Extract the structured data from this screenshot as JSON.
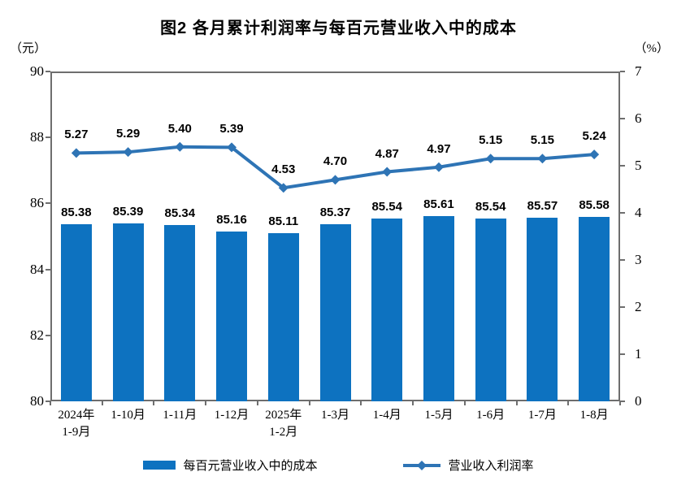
{
  "title": "图2  各月累计利润率与每百元营业收入中的成本",
  "left_axis_unit": "（元）",
  "right_axis_unit": "（%）",
  "chart_data": {
    "type": "combo-bar-line",
    "title": "图2  各月累计利润率与每百元营业收入中的成本",
    "categories": [
      "2024年\n1-9月",
      "1-10月",
      "1-11月",
      "1-12月",
      "2025年\n1-2月",
      "1-3月",
      "1-4月",
      "1-5月",
      "1-6月",
      "1-7月",
      "1-8月"
    ],
    "series": [
      {
        "name": "每百元营业收入中的成本",
        "type": "bar",
        "axis": "left",
        "color": "#0d72c0",
        "values": [
          85.38,
          85.39,
          85.34,
          85.16,
          85.11,
          85.37,
          85.54,
          85.61,
          85.54,
          85.57,
          85.58
        ],
        "value_labels": [
          "85.38",
          "85.39",
          "85.34",
          "85.16",
          "85.11",
          "85.37",
          "85.54",
          "85.61",
          "85.54",
          "85.57",
          "85.58"
        ]
      },
      {
        "name": "营业收入利润率",
        "type": "line",
        "axis": "right",
        "color": "#2e74b5",
        "values": [
          5.27,
          5.29,
          5.4,
          5.39,
          4.53,
          4.7,
          4.87,
          4.97,
          5.15,
          5.15,
          5.24
        ],
        "value_labels": [
          "5.27",
          "5.29",
          "5.40",
          "5.39",
          "4.53",
          "4.70",
          "4.87",
          "4.97",
          "5.15",
          "5.15",
          "5.24"
        ]
      }
    ],
    "left_axis": {
      "min": 80,
      "max": 90,
      "step": 2,
      "tick_labels": [
        "80",
        "82",
        "84",
        "86",
        "88",
        "90"
      ]
    },
    "right_axis": {
      "min": 0,
      "max": 7,
      "step": 1,
      "tick_labels": [
        "0",
        "1",
        "2",
        "3",
        "4",
        "5",
        "6",
        "7"
      ]
    },
    "grid": false,
    "legend_position": "bottom",
    "axis_color": "#6e6e6e"
  }
}
